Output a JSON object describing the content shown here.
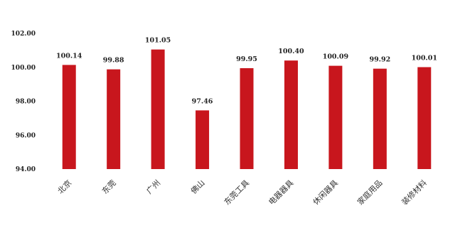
{
  "chart_data": {
    "type": "bar",
    "categories": [
      "北京",
      "东莞",
      "广州",
      "佛山",
      "东莞工具",
      "电器器具",
      "休闲器具",
      "家庭用品",
      "装修材料"
    ],
    "values": [
      100.14,
      99.88,
      101.05,
      97.46,
      99.95,
      100.4,
      100.09,
      99.92,
      100.01
    ],
    "data_labels": [
      "100.14",
      "99.88",
      "101.05",
      "97.46",
      "99.95",
      "100.40",
      "100.09",
      "99.92",
      "100.01"
    ],
    "ylim": [
      94,
      102
    ],
    "yticks": [
      94,
      96,
      98,
      100,
      102
    ],
    "ytick_labels": [
      "94.00",
      "96.00",
      "98.00",
      "100.00",
      "102.00"
    ],
    "title": "",
    "xlabel": "",
    "ylabel": "",
    "grid": false,
    "legend": "none",
    "bar_color": "#c8161d"
  }
}
